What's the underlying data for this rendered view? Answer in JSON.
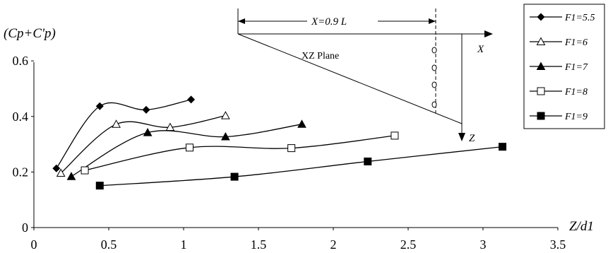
{
  "chart_data": {
    "type": "line",
    "ylabel": "(Cp+C'p)",
    "xlabel": "Z/d1",
    "xlim": [
      0,
      3.5
    ],
    "ylim": [
      0,
      0.6
    ],
    "x_ticks": [
      "0",
      "0.5",
      "1",
      "1.5",
      "2",
      "2.5",
      "3",
      "3.5"
    ],
    "y_ticks": [
      "0",
      "0.2",
      "0.4",
      "0.6"
    ],
    "grid": false,
    "legend_position": "right",
    "series": [
      {
        "name": "F1=5.5",
        "marker": "diamond-filled",
        "x": [
          0.15,
          0.44,
          0.75,
          1.05
        ],
        "y": [
          0.213,
          0.437,
          0.424,
          0.461
        ]
      },
      {
        "name": "F1=6",
        "marker": "triangle-open",
        "x": [
          0.18,
          0.55,
          0.91,
          1.28
        ],
        "y": [
          0.196,
          0.372,
          0.361,
          0.403
        ]
      },
      {
        "name": "F1=7",
        "marker": "triangle-filled",
        "x": [
          0.25,
          0.76,
          1.28,
          1.79
        ],
        "y": [
          0.184,
          0.342,
          0.327,
          0.372
        ]
      },
      {
        "name": "F1=8",
        "marker": "square-open",
        "x": [
          0.34,
          1.04,
          1.72,
          2.41
        ],
        "y": [
          0.206,
          0.288,
          0.286,
          0.331
        ]
      },
      {
        "name": "F1=9",
        "marker": "square-filled",
        "x": [
          0.44,
          1.34,
          2.23,
          3.13
        ],
        "y": [
          0.151,
          0.183,
          0.238,
          0.291
        ]
      }
    ]
  },
  "inset": {
    "distance_label": "X=0.9 L",
    "plane_label": "XZ  Plane",
    "x_axis_label": "X",
    "z_axis_label": "Z"
  }
}
